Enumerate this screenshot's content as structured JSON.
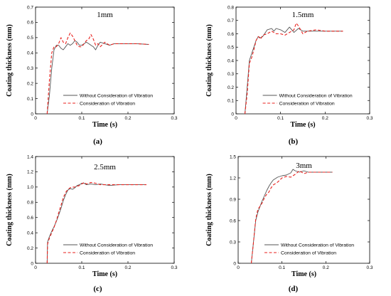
{
  "chart_data": [
    {
      "type": "line",
      "caption": "(a)",
      "title": "1mm",
      "xlabel": "Time (s)",
      "ylabel": "Coating thickness (mm)",
      "xlim": [
        0,
        0.3
      ],
      "ylim": [
        0,
        0.7
      ],
      "xticks": [
        0,
        0.1,
        0.2,
        0.3
      ],
      "xtick_labels": [
        "0",
        "0.1",
        "0.2",
        "0.3"
      ],
      "yticks": [
        0,
        0.1,
        0.2,
        0.3,
        0.4,
        0.5,
        0.6,
        0.7
      ],
      "ytick_labels": [
        "0",
        "0.1",
        "0.2",
        "0.3",
        "0.4",
        "0.5",
        "0.6",
        "0.7"
      ],
      "legend_position": "bottom-right",
      "series": [
        {
          "name": "Without Consideration of Vibration",
          "color": "#555555",
          "style": "solid",
          "x": [
            0.025,
            0.03,
            0.035,
            0.04,
            0.045,
            0.05,
            0.055,
            0.06,
            0.065,
            0.07,
            0.075,
            0.08,
            0.085,
            0.09,
            0.095,
            0.1,
            0.105,
            0.11,
            0.115,
            0.12,
            0.125,
            0.13,
            0.135,
            0.14,
            0.15,
            0.16,
            0.17,
            0.18,
            0.2,
            0.22,
            0.245
          ],
          "y": [
            0.0,
            0.12,
            0.3,
            0.42,
            0.45,
            0.45,
            0.43,
            0.42,
            0.44,
            0.46,
            0.45,
            0.46,
            0.48,
            0.47,
            0.45,
            0.45,
            0.46,
            0.47,
            0.46,
            0.45,
            0.44,
            0.42,
            0.45,
            0.47,
            0.46,
            0.45,
            0.46,
            0.46,
            0.46,
            0.46,
            0.455
          ]
        },
        {
          "name": "Consideration of Vibration",
          "color": "#e8211d",
          "style": "dashed",
          "x": [
            0.025,
            0.03,
            0.035,
            0.04,
            0.045,
            0.05,
            0.055,
            0.06,
            0.065,
            0.07,
            0.075,
            0.08,
            0.085,
            0.09,
            0.095,
            0.1,
            0.105,
            0.11,
            0.115,
            0.12,
            0.125,
            0.13,
            0.135,
            0.14,
            0.15,
            0.16,
            0.17,
            0.18,
            0.2,
            0.22,
            0.245
          ],
          "y": [
            0.0,
            0.22,
            0.4,
            0.44,
            0.44,
            0.46,
            0.5,
            0.47,
            0.46,
            0.5,
            0.53,
            0.51,
            0.48,
            0.45,
            0.44,
            0.44,
            0.46,
            0.48,
            0.49,
            0.52,
            0.49,
            0.45,
            0.46,
            0.44,
            0.47,
            0.45,
            0.46,
            0.46,
            0.46,
            0.46,
            0.455
          ]
        }
      ]
    },
    {
      "type": "line",
      "caption": "(b)",
      "title": "1.5mm",
      "xlabel": "Time (s)",
      "ylabel": "Coating thickness (mm)",
      "xlim": [
        0,
        0.3
      ],
      "ylim": [
        0,
        0.8
      ],
      "xticks": [
        0,
        0.1,
        0.2,
        0.3
      ],
      "xtick_labels": [
        "0",
        "0.1",
        "0.2",
        "0.3"
      ],
      "yticks": [
        0,
        0.1,
        0.2,
        0.3,
        0.4,
        0.5,
        0.6,
        0.7,
        0.8
      ],
      "ytick_labels": [
        "0",
        "0.1",
        "0.2",
        "0.3",
        "0.4",
        "0.5",
        "0.6",
        "0.7",
        "0.8"
      ],
      "legend_position": "bottom-right",
      "series": [
        {
          "name": "Without Consideration of Vibration",
          "color": "#555555",
          "style": "solid",
          "x": [
            0.02,
            0.025,
            0.03,
            0.035,
            0.04,
            0.045,
            0.05,
            0.055,
            0.06,
            0.07,
            0.08,
            0.085,
            0.09,
            0.1,
            0.11,
            0.12,
            0.13,
            0.14,
            0.15,
            0.16,
            0.18,
            0.2,
            0.22,
            0.24
          ],
          "y": [
            0.0,
            0.2,
            0.4,
            0.45,
            0.5,
            0.55,
            0.58,
            0.57,
            0.58,
            0.63,
            0.64,
            0.62,
            0.64,
            0.63,
            0.61,
            0.65,
            0.61,
            0.64,
            0.62,
            0.62,
            0.62,
            0.62,
            0.62,
            0.62
          ]
        },
        {
          "name": "Consideration of Vibration",
          "color": "#e8211d",
          "style": "dashed",
          "x": [
            0.02,
            0.025,
            0.03,
            0.035,
            0.04,
            0.045,
            0.05,
            0.055,
            0.06,
            0.07,
            0.08,
            0.09,
            0.1,
            0.11,
            0.12,
            0.13,
            0.135,
            0.14,
            0.15,
            0.16,
            0.18,
            0.2,
            0.22,
            0.24
          ],
          "y": [
            0.0,
            0.15,
            0.38,
            0.42,
            0.48,
            0.55,
            0.58,
            0.56,
            0.59,
            0.6,
            0.62,
            0.6,
            0.6,
            0.59,
            0.61,
            0.63,
            0.68,
            0.66,
            0.6,
            0.62,
            0.63,
            0.62,
            0.62,
            0.62
          ]
        }
      ]
    },
    {
      "type": "line",
      "caption": "(c)",
      "title": "2.5mm",
      "xlabel": "Time (s)",
      "ylabel": "Coating thickness (mm)",
      "xlim": [
        0,
        0.3
      ],
      "ylim": [
        0,
        1.4
      ],
      "xticks": [
        0,
        0.1,
        0.2,
        0.3
      ],
      "xtick_labels": [
        "0",
        "0.1",
        "0.2",
        "0.3"
      ],
      "yticks": [
        0,
        0.2,
        0.4,
        0.6,
        0.8,
        1.0,
        1.2,
        1.4
      ],
      "ytick_labels": [
        "0",
        "0.2",
        "0.4",
        "0.6",
        "0.8",
        "1.0",
        "1.2",
        "1.4"
      ],
      "legend_position": "bottom-right",
      "series": [
        {
          "name": "Without Consideration of Vibration",
          "color": "#555555",
          "style": "solid",
          "x": [
            0.025,
            0.026,
            0.03,
            0.035,
            0.04,
            0.045,
            0.05,
            0.055,
            0.06,
            0.065,
            0.07,
            0.075,
            0.08,
            0.085,
            0.09,
            0.095,
            0.1,
            0.105,
            0.11,
            0.12,
            0.13,
            0.14,
            0.16,
            0.18,
            0.2,
            0.22,
            0.24
          ],
          "y": [
            0.0,
            0.28,
            0.35,
            0.42,
            0.48,
            0.55,
            0.63,
            0.72,
            0.82,
            0.9,
            0.96,
            0.98,
            0.97,
            0.99,
            1.02,
            1.03,
            1.05,
            1.05,
            1.03,
            1.04,
            1.03,
            1.04,
            1.02,
            1.03,
            1.03,
            1.03,
            1.03
          ]
        },
        {
          "name": "Consideration of Vibration",
          "color": "#e8211d",
          "style": "dashed",
          "x": [
            0.025,
            0.026,
            0.03,
            0.035,
            0.04,
            0.045,
            0.05,
            0.055,
            0.06,
            0.065,
            0.07,
            0.075,
            0.08,
            0.085,
            0.09,
            0.095,
            0.1,
            0.105,
            0.11,
            0.12,
            0.13,
            0.14,
            0.16,
            0.18,
            0.2,
            0.22,
            0.24
          ],
          "y": [
            0.0,
            0.25,
            0.33,
            0.4,
            0.47,
            0.56,
            0.66,
            0.76,
            0.86,
            0.93,
            0.97,
            0.99,
            1.0,
            1.0,
            1.01,
            1.02,
            1.04,
            1.06,
            1.04,
            1.06,
            1.05,
            1.03,
            1.03,
            1.03,
            1.03,
            1.03,
            1.03
          ]
        }
      ]
    },
    {
      "type": "line",
      "caption": "(d)",
      "title": "3mm",
      "xlabel": "Time (s)",
      "ylabel": "Coating thickness (mm)",
      "xlim": [
        0,
        0.3
      ],
      "ylim": [
        0,
        1.5
      ],
      "xticks": [
        0,
        0.1,
        0.2,
        0.3
      ],
      "xtick_labels": [
        "0",
        "0.1",
        "0.2",
        "0.3"
      ],
      "yticks": [
        0,
        0.3,
        0.6,
        0.9,
        1.2,
        1.5
      ],
      "ytick_labels": [
        "0",
        "0.3",
        "0.6",
        "0.9",
        "1.2",
        "1.5"
      ],
      "legend_position": "bottom-right",
      "series": [
        {
          "name": "Without Consideration of Vibration",
          "color": "#555555",
          "style": "solid",
          "x": [
            0.03,
            0.035,
            0.04,
            0.045,
            0.05,
            0.055,
            0.06,
            0.065,
            0.07,
            0.075,
            0.08,
            0.085,
            0.09,
            0.1,
            0.11,
            0.12,
            0.125,
            0.13,
            0.14,
            0.15,
            0.16,
            0.18,
            0.2,
            0.215
          ],
          "y": [
            0.0,
            0.3,
            0.6,
            0.72,
            0.8,
            0.88,
            0.95,
            1.02,
            1.08,
            1.13,
            1.17,
            1.19,
            1.21,
            1.23,
            1.24,
            1.27,
            1.32,
            1.3,
            1.28,
            1.3,
            1.28,
            1.28,
            1.28,
            1.28
          ]
        },
        {
          "name": "Consideration of Vibration",
          "color": "#e8211d",
          "style": "dashed",
          "x": [
            0.03,
            0.035,
            0.04,
            0.045,
            0.05,
            0.055,
            0.06,
            0.065,
            0.07,
            0.075,
            0.08,
            0.09,
            0.1,
            0.11,
            0.12,
            0.13,
            0.14,
            0.15,
            0.16,
            0.18,
            0.2,
            0.215
          ],
          "y": [
            0.0,
            0.3,
            0.62,
            0.76,
            0.8,
            0.85,
            0.92,
            0.97,
            1.0,
            1.06,
            1.1,
            1.14,
            1.2,
            1.22,
            1.21,
            1.25,
            1.3,
            1.26,
            1.28,
            1.28,
            1.28,
            1.28
          ]
        }
      ]
    }
  ]
}
